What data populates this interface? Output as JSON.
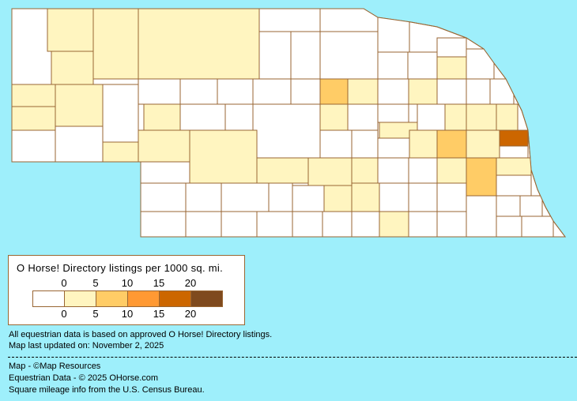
{
  "legend": {
    "title": "O Horse! Directory listings per 1000 sq. mi.",
    "ticks": [
      "0",
      "5",
      "10",
      "15",
      "20"
    ],
    "bins": [
      {
        "range": "0",
        "color": "#FFFFFF"
      },
      {
        "range": "0-5",
        "color": "#FFF5C0"
      },
      {
        "range": "5-10",
        "color": "#FFCC66"
      },
      {
        "range": "10-15",
        "color": "#FF9933"
      },
      {
        "range": "15-20",
        "color": "#CC6600"
      },
      {
        "range": "20+",
        "color": "#7F4A1E"
      }
    ]
  },
  "notes": {
    "data_basis": "All equestrian data is based on approved O Horse! Directory listings.",
    "updated": "Map last updated on: November 2, 2025"
  },
  "credits": {
    "map": "Map - ©Map Resources",
    "data": "Equestrian Data - © 2025 OHorse.com",
    "census": "Square mileage info from the U.S. Census Bureau."
  },
  "colors": {
    "background": "#9EEFFB",
    "county_border": "#996633"
  }
}
